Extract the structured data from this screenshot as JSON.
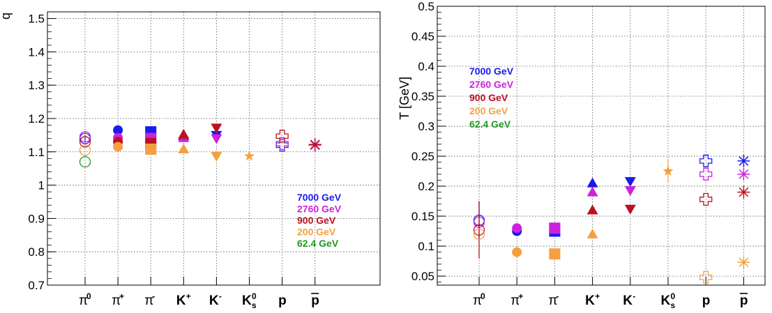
{
  "chart_data": [
    {
      "type": "scatter",
      "ylabel": "q",
      "ylim": [
        0.7,
        1.52
      ],
      "yticks": [
        "0.7",
        "0.8",
        "0.9",
        "1",
        "1.1",
        "1.2",
        "1.3",
        "1.4",
        "1.5"
      ],
      "grid": true,
      "categories": [
        "π0",
        "π+",
        "π-",
        "K+",
        "K-",
        "Ks0",
        "p",
        "p̄"
      ],
      "legend": {
        "placement": "bottom-right",
        "entries": [
          {
            "label": "7000 GeV",
            "color": "#1a1aee"
          },
          {
            "label": "2760 GeV",
            "color": "#cc22dd"
          },
          {
            "label": "900 GeV",
            "color": "#bb1122"
          },
          {
            "label": "200 GeV",
            "color": "#f5a040"
          },
          {
            "label": "62.4 GeV",
            "color": "#229922"
          }
        ]
      },
      "series": [
        {
          "energy": "7000 GeV",
          "color": "#1a1aee",
          "points": [
            {
              "category": "π0",
              "y": 1.14,
              "marker": "open-circle",
              "err": 0.01
            },
            {
              "category": "π+",
              "y": 1.165,
              "marker": "circle"
            },
            {
              "category": "π-",
              "y": 1.16,
              "marker": "square"
            },
            {
              "category": "K+",
              "y": 1.148,
              "marker": "triangle-up"
            },
            {
              "category": "K-",
              "y": 1.15,
              "marker": "triangle-down"
            },
            {
              "category": "p",
              "y": 1.12,
              "marker": "open-cross"
            },
            {
              "category": "p̄",
              "y": 1.12,
              "marker": "star"
            }
          ]
        },
        {
          "energy": "2760 GeV",
          "color": "#cc22dd",
          "points": [
            {
              "category": "π0",
              "y": 1.145,
              "marker": "open-circle"
            },
            {
              "category": "π+",
              "y": 1.142,
              "marker": "circle"
            },
            {
              "category": "π-",
              "y": 1.14,
              "marker": "square"
            },
            {
              "category": "K+",
              "y": 1.142,
              "marker": "triangle-up"
            },
            {
              "category": "K-",
              "y": 1.14,
              "marker": "triangle-down"
            },
            {
              "category": "p",
              "y": 1.125,
              "marker": "open-cross"
            },
            {
              "category": "p̄",
              "y": 1.12,
              "marker": "star"
            }
          ]
        },
        {
          "energy": "900 GeV",
          "color": "#bb1122",
          "points": [
            {
              "category": "π0",
              "y": 1.13,
              "marker": "open-circle"
            },
            {
              "category": "π+",
              "y": 1.13,
              "marker": "circle"
            },
            {
              "category": "π-",
              "y": 1.125,
              "marker": "square"
            },
            {
              "category": "K+",
              "y": 1.152,
              "marker": "triangle-up"
            },
            {
              "category": "K-",
              "y": 1.172,
              "marker": "triangle-down"
            },
            {
              "category": "p",
              "y": 1.147,
              "marker": "open-cross"
            },
            {
              "category": "p̄",
              "y": 1.122,
              "marker": "star"
            }
          ]
        },
        {
          "energy": "200 GeV",
          "color": "#f5a040",
          "points": [
            {
              "category": "π0",
              "y": 1.105,
              "marker": "open-circle"
            },
            {
              "category": "π+",
              "y": 1.115,
              "marker": "circle"
            },
            {
              "category": "π-",
              "y": 1.108,
              "marker": "square"
            },
            {
              "category": "K+",
              "y": 1.108,
              "marker": "triangle-up"
            },
            {
              "category": "K-",
              "y": 1.087,
              "marker": "triangle-down"
            },
            {
              "category": "Ks0",
              "y": 1.087,
              "marker": "star5"
            }
          ]
        },
        {
          "energy": "62.4 GeV",
          "color": "#229922",
          "points": [
            {
              "category": "π0",
              "y": 1.07,
              "marker": "open-circle"
            }
          ]
        }
      ]
    },
    {
      "type": "scatter",
      "ylabel": "T [GeV]",
      "ylim": [
        0.035,
        0.5
      ],
      "yticks": [
        "0.05",
        "0.1",
        "0.15",
        "0.2",
        "0.25",
        "0.3",
        "0.35",
        "0.4",
        "0.45",
        "0.5"
      ],
      "grid": true,
      "categories": [
        "π0",
        "π+",
        "π-",
        "K+",
        "K-",
        "Ks0",
        "p",
        "p̄"
      ],
      "legend": {
        "placement": "top-left",
        "entries": [
          {
            "label": "7000 GeV",
            "color": "#1a1aee"
          },
          {
            "label": "2760 GeV",
            "color": "#cc22dd"
          },
          {
            "label": "900 GeV",
            "color": "#bb1122"
          },
          {
            "label": "200 GeV",
            "color": "#f5a040"
          },
          {
            "label": "62.4 GeV",
            "color": "#229922"
          }
        ]
      },
      "series": [
        {
          "energy": "7000 GeV",
          "color": "#1a1aee",
          "points": [
            {
              "category": "π0",
              "y": 0.143,
              "marker": "open-circle",
              "err": 0.032
            },
            {
              "category": "π+",
              "y": 0.125,
              "marker": "circle"
            },
            {
              "category": "π-",
              "y": 0.125,
              "marker": "square"
            },
            {
              "category": "K+",
              "y": 0.205,
              "marker": "triangle-up"
            },
            {
              "category": "K-",
              "y": 0.208,
              "marker": "triangle-down"
            },
            {
              "category": "p",
              "y": 0.242,
              "marker": "open-cross"
            },
            {
              "category": "p̄",
              "y": 0.242,
              "marker": "star"
            }
          ]
        },
        {
          "energy": "2760 GeV",
          "color": "#cc22dd",
          "points": [
            {
              "category": "π0",
              "y": 0.14,
              "marker": "open-circle"
            },
            {
              "category": "π+",
              "y": 0.13,
              "marker": "circle"
            },
            {
              "category": "π-",
              "y": 0.13,
              "marker": "square"
            },
            {
              "category": "K+",
              "y": 0.19,
              "marker": "triangle-up"
            },
            {
              "category": "K-",
              "y": 0.193,
              "marker": "triangle-down"
            },
            {
              "category": "p",
              "y": 0.22,
              "marker": "open-cross"
            },
            {
              "category": "p̄",
              "y": 0.22,
              "marker": "star"
            }
          ]
        },
        {
          "energy": "900 GeV",
          "color": "#bb1122",
          "points": [
            {
              "category": "π0",
              "y": 0.127,
              "marker": "open-circle",
              "err": 0.048
            },
            {
              "category": "K+",
              "y": 0.16,
              "marker": "triangle-up"
            },
            {
              "category": "K-",
              "y": 0.162,
              "marker": "triangle-down"
            },
            {
              "category": "p",
              "y": 0.178,
              "marker": "open-cross"
            },
            {
              "category": "p̄",
              "y": 0.19,
              "marker": "star"
            }
          ]
        },
        {
          "energy": "200 GeV",
          "color": "#f5a040",
          "points": [
            {
              "category": "π0",
              "y": 0.12,
              "marker": "open-circle"
            },
            {
              "category": "π+",
              "y": 0.09,
              "marker": "circle"
            },
            {
              "category": "π-",
              "y": 0.087,
              "marker": "square"
            },
            {
              "category": "K+",
              "y": 0.12,
              "marker": "triangle-up"
            },
            {
              "category": "Ks0",
              "y": 0.225,
              "marker": "star5",
              "err": 0.02
            },
            {
              "category": "p",
              "y": 0.048,
              "marker": "open-cross"
            },
            {
              "category": "p̄",
              "y": 0.073,
              "marker": "star"
            }
          ]
        }
      ]
    }
  ]
}
